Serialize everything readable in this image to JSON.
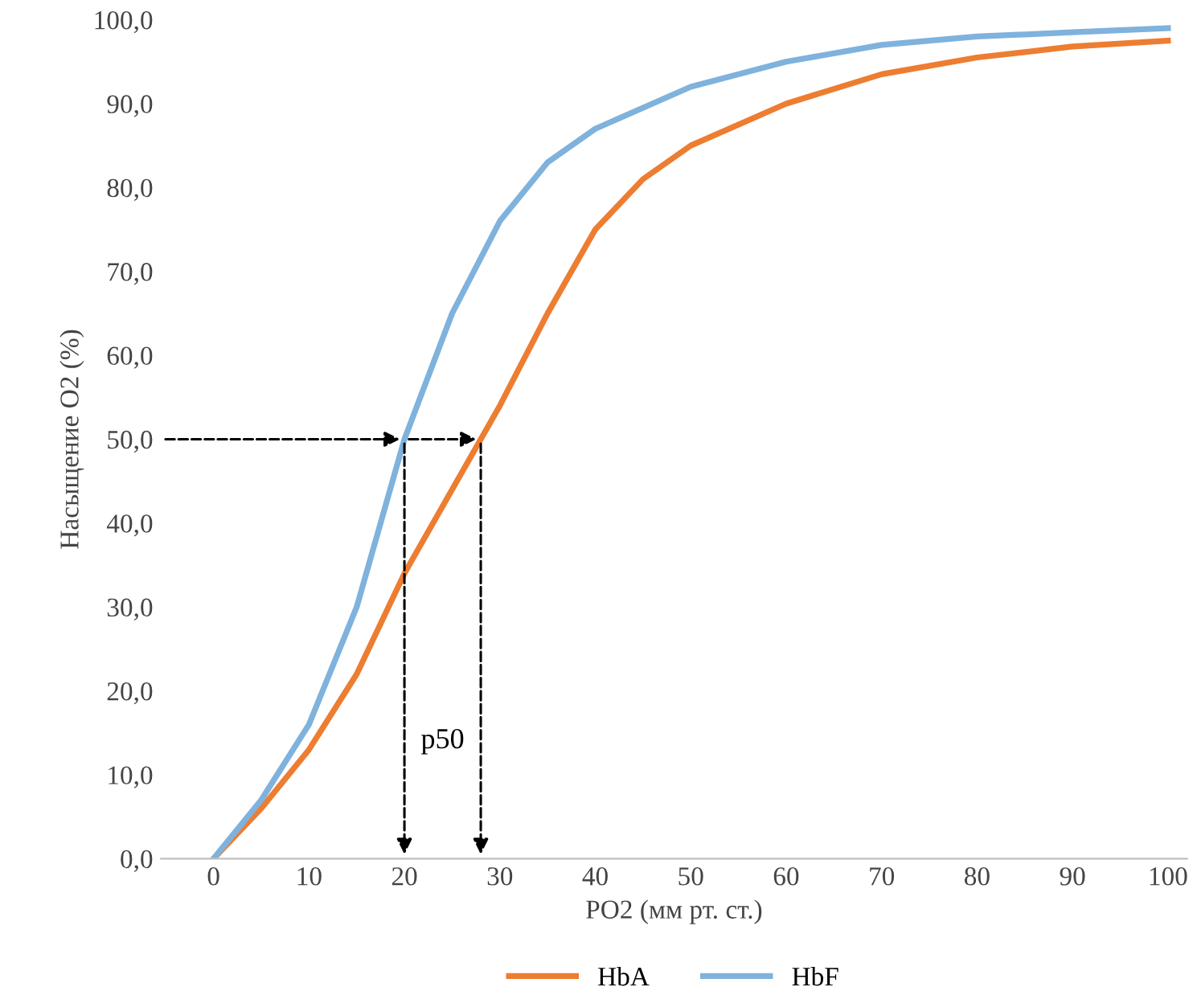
{
  "chart_data": {
    "type": "line",
    "xlabel": "PO2 (мм рт. ст.)",
    "ylabel": "Насыщение O2 (%)",
    "xlim": [
      -5.5,
      102
    ],
    "xticks": [
      0,
      10,
      20,
      30,
      40,
      50,
      60,
      70,
      80,
      90,
      100
    ],
    "ylim": [
      0,
      100
    ],
    "yticks": [
      {
        "value": 0,
        "label": "0,0"
      },
      {
        "value": 10,
        "label": "10,0"
      },
      {
        "value": 20,
        "label": "20,0"
      },
      {
        "value": 30,
        "label": "30,0"
      },
      {
        "value": 40,
        "label": "40,0"
      },
      {
        "value": 50,
        "label": "50,0"
      },
      {
        "value": 60,
        "label": "60,0"
      },
      {
        "value": 70,
        "label": "70,0"
      },
      {
        "value": 80,
        "label": "80,0"
      },
      {
        "value": 90,
        "label": "90,0"
      },
      {
        "value": 100,
        "label": "100,0"
      }
    ],
    "series": [
      {
        "name": "HbA",
        "color": "#ed7d31",
        "x": [
          0,
          5,
          10,
          15,
          20,
          25,
          28,
          30,
          35,
          40,
          45,
          50,
          60,
          70,
          80,
          90,
          100
        ],
        "values": [
          0,
          6,
          13,
          22,
          34,
          44,
          50,
          54,
          65,
          75,
          81,
          85,
          90,
          93.5,
          95.5,
          96.8,
          97.5
        ]
      },
      {
        "name": "HbF",
        "color": "#7fb2dc",
        "x": [
          0,
          5,
          10,
          15,
          20,
          25,
          30,
          35,
          40,
          50,
          60,
          70,
          80,
          90,
          100
        ],
        "values": [
          0,
          7,
          16,
          30,
          50,
          65,
          76,
          83,
          87,
          92,
          95,
          97,
          98,
          98.5,
          99
        ]
      }
    ],
    "annotations": [
      "p50"
    ],
    "legend": "bottom",
    "grid": false,
    "marker": "none",
    "line_style": "solid"
  }
}
